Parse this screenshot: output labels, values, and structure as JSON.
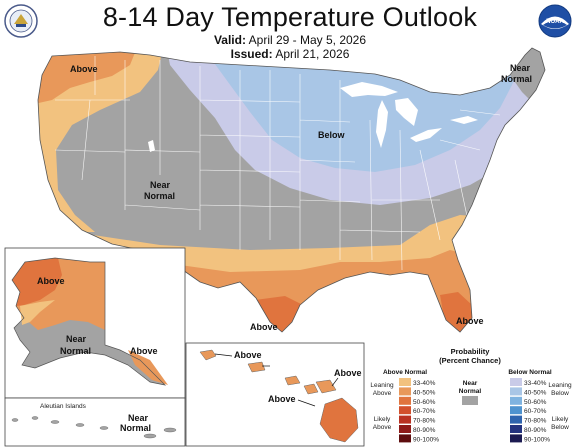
{
  "header": {
    "title": "8-14 Day Temperature Outlook",
    "valid_label": "Valid:",
    "valid_value": "April 29 - May 5, 2026",
    "issued_label": "Issued:",
    "issued_value": "April 21, 2026"
  },
  "logos": {
    "left": "doc-seal",
    "right_text": "NOAA"
  },
  "map_labels": {
    "conus_above_nw": "Above",
    "conus_below": "Below",
    "conus_near_normal_w": "Near",
    "conus_near_normal_w2": "Normal",
    "conus_near_normal_ne": "Near",
    "conus_near_normal_ne2": "Normal",
    "conus_above_tx": "Above",
    "conus_above_fl": "Above",
    "ak_above": "Above",
    "ak_near": "Near",
    "ak_normal": "Normal",
    "ak_above_se": "Above",
    "aleutian_title": "Aleutian Islands",
    "aleutian_near": "Near",
    "aleutian_normal": "Normal",
    "hi_above_1": "Above",
    "hi_above_2": "Above",
    "hi_above_3": "Above"
  },
  "legend": {
    "title1": "Probability",
    "title2": "(Percent Chance)",
    "above_header": "Above Normal",
    "below_header": "Below Normal",
    "near_header1": "Near",
    "near_header2": "Normal",
    "leaning_above1": "Leaning",
    "leaning_above2": "Above",
    "likely_above1": "Likely",
    "likely_above2": "Above",
    "leaning_below1": "Leaning",
    "leaning_below2": "Below",
    "likely_below1": "Likely",
    "likely_below2": "Below",
    "above_bins": [
      {
        "range": "33-40%",
        "color": "#f2c27f"
      },
      {
        "range": "40-50%",
        "color": "#e8985a"
      },
      {
        "range": "50-60%",
        "color": "#e0743e"
      },
      {
        "range": "60-70%",
        "color": "#d2502c"
      },
      {
        "range": "70-80%",
        "color": "#b93222"
      },
      {
        "range": "80-90%",
        "color": "#8e1a18"
      },
      {
        "range": "90-100%",
        "color": "#5e0d0e"
      }
    ],
    "below_bins": [
      {
        "range": "33-40%",
        "color": "#c9cbe8"
      },
      {
        "range": "40-50%",
        "color": "#a9c6e6"
      },
      {
        "range": "50-60%",
        "color": "#7fb3e0"
      },
      {
        "range": "60-70%",
        "color": "#4f93cf"
      },
      {
        "range": "70-80%",
        "color": "#2f64ae"
      },
      {
        "range": "80-90%",
        "color": "#24337f"
      },
      {
        "range": "90-100%",
        "color": "#1c1b52"
      }
    ],
    "near_color": "#a3a3a3"
  },
  "colors": {
    "near_normal": "#a3a3a3",
    "above_33_40": "#f2c27f",
    "above_40_50": "#e8985a",
    "above_50_60": "#e0743e",
    "below_33_40": "#c9cbe8",
    "below_40_50": "#a9c6e6",
    "lakes": "#ffffff"
  }
}
